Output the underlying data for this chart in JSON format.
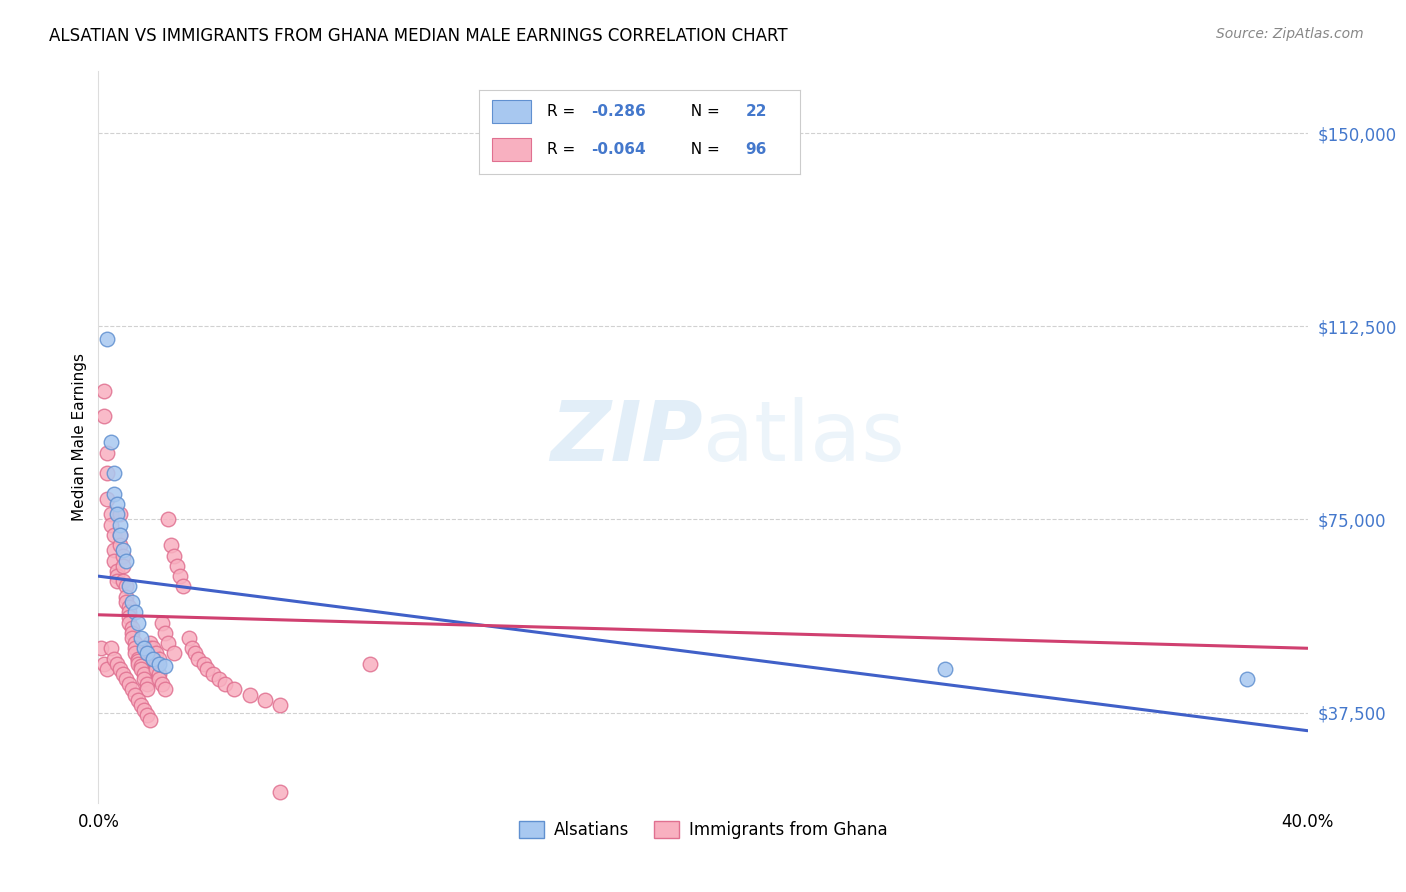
{
  "title": "ALSATIAN VS IMMIGRANTS FROM GHANA MEDIAN MALE EARNINGS CORRELATION CHART",
  "source": "Source: ZipAtlas.com",
  "ylabel": "Median Male Earnings",
  "ytick_labels": [
    "$37,500",
    "$75,000",
    "$112,500",
    "$150,000"
  ],
  "ytick_values": [
    37500,
    75000,
    112500,
    150000
  ],
  "ylim": [
    20000,
    162000
  ],
  "xlim": [
    0.0,
    0.4
  ],
  "watermark_zip": "ZIP",
  "watermark_atlas": "atlas",
  "legend_r_blue": "-0.286",
  "legend_n_blue": "22",
  "legend_r_pink": "-0.064",
  "legend_n_pink": "96",
  "legend_label_blue": "Alsatians",
  "legend_label_pink": "Immigrants from Ghana",
  "blue_scatter_color": "#A8C8F0",
  "blue_edge_color": "#6090D0",
  "pink_scatter_color": "#F8B0C0",
  "pink_edge_color": "#E07090",
  "blue_line_color": "#4060C8",
  "pink_line_color": "#D04070",
  "text_blue_color": "#4478CC",
  "blue_line_x": [
    0.0,
    0.4
  ],
  "blue_line_y": [
    64000,
    34000
  ],
  "pink_line_x": [
    0.0,
    0.4
  ],
  "pink_line_y": [
    56500,
    50000
  ],
  "grid_color": "#CCCCCC",
  "bg_color": "#FFFFFF",
  "blue_scatter_x": [
    0.003,
    0.004,
    0.005,
    0.005,
    0.006,
    0.006,
    0.007,
    0.007,
    0.008,
    0.009,
    0.01,
    0.011,
    0.012,
    0.013,
    0.014,
    0.015,
    0.016,
    0.018,
    0.02,
    0.022,
    0.28,
    0.38
  ],
  "blue_scatter_y": [
    110000,
    90000,
    84000,
    80000,
    78000,
    76000,
    74000,
    72000,
    69000,
    67000,
    62000,
    59000,
    57000,
    55000,
    52000,
    50000,
    49000,
    48000,
    47000,
    46500,
    46000,
    44000
  ],
  "pink_scatter_x": [
    0.001,
    0.002,
    0.002,
    0.003,
    0.003,
    0.003,
    0.004,
    0.004,
    0.005,
    0.005,
    0.005,
    0.006,
    0.006,
    0.006,
    0.007,
    0.007,
    0.007,
    0.008,
    0.008,
    0.008,
    0.009,
    0.009,
    0.009,
    0.01,
    0.01,
    0.01,
    0.01,
    0.011,
    0.011,
    0.011,
    0.012,
    0.012,
    0.012,
    0.013,
    0.013,
    0.013,
    0.014,
    0.014,
    0.015,
    0.015,
    0.016,
    0.016,
    0.017,
    0.017,
    0.018,
    0.018,
    0.019,
    0.019,
    0.02,
    0.02,
    0.021,
    0.022,
    0.023,
    0.024,
    0.025,
    0.026,
    0.027,
    0.028,
    0.03,
    0.031,
    0.032,
    0.033,
    0.035,
    0.036,
    0.038,
    0.04,
    0.042,
    0.045,
    0.05,
    0.055,
    0.06,
    0.002,
    0.003,
    0.004,
    0.005,
    0.006,
    0.007,
    0.008,
    0.009,
    0.01,
    0.011,
    0.012,
    0.013,
    0.014,
    0.015,
    0.016,
    0.017,
    0.018,
    0.019,
    0.02,
    0.021,
    0.022,
    0.023,
    0.025,
    0.06,
    0.09
  ],
  "pink_scatter_y": [
    50000,
    100000,
    95000,
    88000,
    84000,
    79000,
    76000,
    74000,
    72000,
    69000,
    67000,
    65000,
    64000,
    63000,
    76000,
    72000,
    70000,
    68000,
    66000,
    63000,
    62000,
    60000,
    59000,
    58000,
    57000,
    56000,
    55000,
    54000,
    53000,
    52000,
    51000,
    50000,
    49000,
    48000,
    47500,
    47000,
    46500,
    46000,
    45000,
    44000,
    43000,
    42000,
    51000,
    50000,
    49000,
    48000,
    47000,
    46000,
    45000,
    44000,
    43000,
    42000,
    75000,
    70000,
    68000,
    66000,
    64000,
    62000,
    52000,
    50000,
    49000,
    48000,
    47000,
    46000,
    45000,
    44000,
    43000,
    42000,
    41000,
    40000,
    39000,
    47000,
    46000,
    50000,
    48000,
    47000,
    46000,
    45000,
    44000,
    43000,
    42000,
    41000,
    40000,
    39000,
    38000,
    37000,
    36000,
    50000,
    49000,
    48000,
    55000,
    53000,
    51000,
    49000,
    22000,
    47000
  ]
}
